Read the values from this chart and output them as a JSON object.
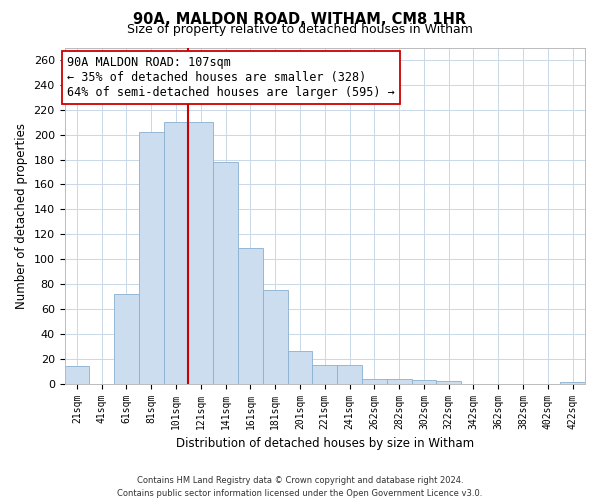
{
  "title": "90A, MALDON ROAD, WITHAM, CM8 1HR",
  "subtitle": "Size of property relative to detached houses in Witham",
  "xlabel": "Distribution of detached houses by size in Witham",
  "ylabel": "Number of detached properties",
  "bar_labels": [
    "21sqm",
    "41sqm",
    "61sqm",
    "81sqm",
    "101sqm",
    "121sqm",
    "141sqm",
    "161sqm",
    "181sqm",
    "201sqm",
    "221sqm",
    "241sqm",
    "262sqm",
    "282sqm",
    "302sqm",
    "322sqm",
    "342sqm",
    "362sqm",
    "382sqm",
    "402sqm",
    "422sqm"
  ],
  "bar_values": [
    14,
    0,
    72,
    202,
    210,
    210,
    178,
    109,
    75,
    26,
    15,
    15,
    4,
    4,
    3,
    2,
    0,
    0,
    0,
    0,
    1
  ],
  "bar_color": "#ccddf0",
  "bar_edgecolor": "#8ab0d0",
  "vline_color": "#cc0000",
  "ylim": [
    0,
    270
  ],
  "yticks": [
    0,
    20,
    40,
    60,
    80,
    100,
    120,
    140,
    160,
    180,
    200,
    220,
    240,
    260
  ],
  "annotation_title": "90A MALDON ROAD: 107sqm",
  "annotation_line1": "← 35% of detached houses are smaller (328)",
  "annotation_line2": "64% of semi-detached houses are larger (595) →",
  "footer_line1": "Contains HM Land Registry data © Crown copyright and database right 2024.",
  "footer_line2": "Contains public sector information licensed under the Open Government Licence v3.0.",
  "background_color": "#ffffff",
  "grid_color": "#c8d8e8"
}
